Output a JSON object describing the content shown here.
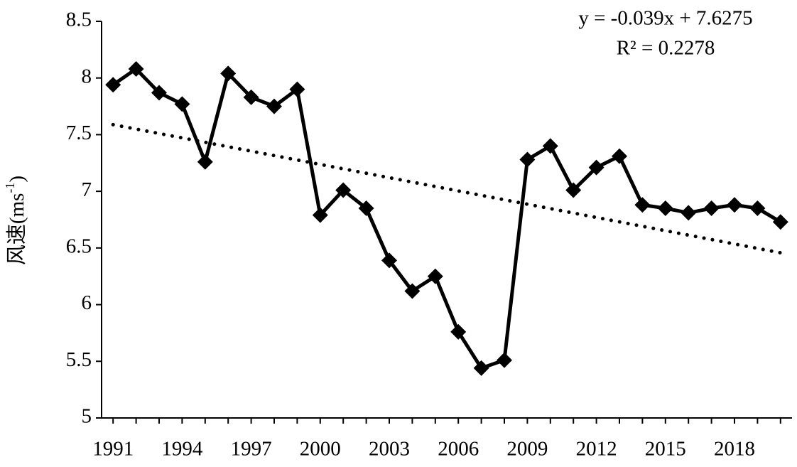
{
  "chart_data": {
    "type": "line",
    "y_label": {
      "text": "风速(ms",
      "superscript": "-1",
      "suffix": ")"
    },
    "annotations": [
      "y = -0.039x + 7.6275",
      "R² = 0.2278"
    ],
    "trendline": {
      "slope": -0.039,
      "intercept": 7.6275
    },
    "x": [
      1991,
      1992,
      1993,
      1994,
      1995,
      1996,
      1997,
      1998,
      1999,
      2000,
      2001,
      2002,
      2003,
      2004,
      2005,
      2006,
      2007,
      2008,
      2009,
      2010,
      2011,
      2012,
      2013,
      2014,
      2015,
      2016,
      2017,
      2018,
      2019,
      2020
    ],
    "series": [
      {
        "color": "#000000",
        "values": [
          7.94,
          8.08,
          7.87,
          7.77,
          7.26,
          8.04,
          7.83,
          7.75,
          7.9,
          6.79,
          7.01,
          6.85,
          6.39,
          6.12,
          6.25,
          5.76,
          5.44,
          5.51,
          7.28,
          7.4,
          7.01,
          7.21,
          7.31,
          6.88,
          6.85,
          6.81,
          6.85,
          6.88,
          6.85,
          6.73
        ]
      }
    ],
    "xlim": [
      1990.5,
      2020.5
    ],
    "xticks": [
      1991,
      1994,
      1997,
      2000,
      2003,
      2006,
      2009,
      2012,
      2015,
      2018
    ],
    "ylim": [
      5,
      8.5
    ],
    "yticks": [
      5,
      5.5,
      6,
      6.5,
      7,
      7.5,
      8,
      8.5
    ],
    "grid": false
  }
}
